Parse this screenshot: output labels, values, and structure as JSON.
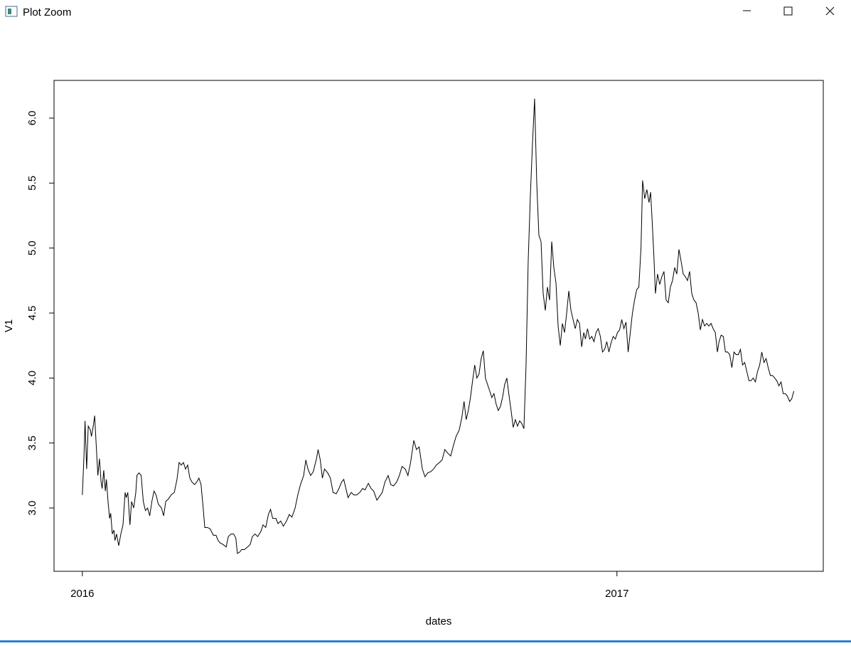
{
  "window": {
    "title": "Plot Zoom"
  },
  "chart_data": {
    "type": "line",
    "x_label": "dates",
    "y_label": "V1",
    "x": [
      2016.0,
      2016.003,
      2016.005,
      2016.008,
      2016.011,
      2016.015,
      2016.017,
      2016.02,
      2016.023,
      2016.027,
      2016.029,
      2016.032,
      2016.035,
      2016.037,
      2016.04,
      2016.043,
      2016.045,
      2016.048,
      2016.051,
      2016.053,
      2016.056,
      2016.059,
      2016.061,
      2016.064,
      2016.068,
      2016.072,
      2016.076,
      2016.08,
      2016.082,
      2016.085,
      2016.089,
      2016.092,
      2016.096,
      2016.1,
      2016.102,
      2016.106,
      2016.11,
      2016.114,
      2016.118,
      2016.122,
      2016.126,
      2016.13,
      2016.134,
      2016.138,
      2016.142,
      2016.148,
      2016.152,
      2016.156,
      2016.161,
      2016.166,
      2016.172,
      2016.177,
      2016.181,
      2016.185,
      2016.189,
      2016.193,
      2016.197,
      2016.201,
      2016.205,
      2016.21,
      2016.214,
      2016.218,
      2016.222,
      2016.226,
      2016.229,
      2016.234,
      2016.239,
      2016.245,
      2016.25,
      2016.254,
      2016.258,
      2016.263,
      2016.269,
      2016.273,
      2016.278,
      2016.283,
      2016.287,
      2016.29,
      2016.294,
      2016.298,
      2016.303,
      2016.309,
      2016.314,
      2016.318,
      2016.323,
      2016.328,
      2016.334,
      2016.338,
      2016.343,
      2016.348,
      2016.352,
      2016.356,
      2016.362,
      2016.366,
      2016.371,
      2016.376,
      2016.382,
      2016.387,
      2016.392,
      2016.398,
      2016.403,
      2016.408,
      2016.414,
      2016.418,
      2016.422,
      2016.427,
      2016.432,
      2016.438,
      2016.441,
      2016.445,
      2016.449,
      2016.453,
      2016.459,
      2016.464,
      2016.469,
      2016.475,
      2016.48,
      2016.485,
      2016.489,
      2016.493,
      2016.497,
      2016.503,
      2016.508,
      2016.513,
      2016.519,
      2016.524,
      2016.529,
      2016.535,
      2016.54,
      2016.545,
      2016.551,
      2016.556,
      2016.561,
      2016.566,
      2016.572,
      2016.577,
      2016.582,
      2016.588,
      2016.593,
      2016.598,
      2016.604,
      2016.609,
      2016.614,
      2016.62,
      2016.625,
      2016.63,
      2016.636,
      2016.641,
      2016.646,
      2016.652,
      2016.657,
      2016.662,
      2016.668,
      2016.673,
      2016.678,
      2016.684,
      2016.689,
      2016.694,
      2016.699,
      2016.705,
      2016.71,
      2016.714,
      2016.718,
      2016.722,
      2016.726,
      2016.73,
      2016.734,
      2016.738,
      2016.742,
      2016.746,
      2016.75,
      2016.754,
      2016.758,
      2016.762,
      2016.766,
      2016.77,
      2016.774,
      2016.778,
      2016.782,
      2016.786,
      2016.79,
      2016.794,
      2016.798,
      2016.802,
      2016.806,
      2016.81,
      2016.814,
      2016.818,
      2016.822,
      2016.826,
      2016.83,
      2016.834,
      2016.838,
      2016.842,
      2016.846,
      2016.85,
      2016.854,
      2016.858,
      2016.862,
      2016.866,
      2016.87,
      2016.874,
      2016.878,
      2016.882,
      2016.886,
      2016.89,
      2016.894,
      2016.898,
      2016.902,
      2016.906,
      2016.91,
      2016.914,
      2016.918,
      2016.922,
      2016.926,
      2016.93,
      2016.934,
      2016.938,
      2016.941,
      2016.945,
      2016.949,
      2016.953,
      2016.957,
      2016.961,
      2016.965,
      2016.969,
      2016.973,
      2016.977,
      2016.981,
      2016.985,
      2016.989,
      2016.993,
      2016.997,
      2017.001,
      2017.005,
      2017.009,
      2017.013,
      2017.017,
      2017.021,
      2017.025,
      2017.029,
      2017.033,
      2017.037,
      2017.041,
      2017.045,
      2017.048,
      2017.052,
      2017.056,
      2017.06,
      2017.063,
      2017.066,
      2017.069,
      2017.072,
      2017.076,
      2017.08,
      2017.084,
      2017.088,
      2017.092,
      2017.096,
      2017.1,
      2017.104,
      2017.108,
      2017.112,
      2017.116,
      2017.12,
      2017.124,
      2017.128,
      2017.132,
      2017.136,
      2017.14,
      2017.144,
      2017.148,
      2017.152,
      2017.156,
      2017.16,
      2017.164,
      2017.168,
      2017.172,
      2017.176,
      2017.18,
      2017.184,
      2017.188,
      2017.191,
      2017.195,
      2017.199,
      2017.203,
      2017.207,
      2017.211,
      2017.215,
      2017.219,
      2017.223,
      2017.227,
      2017.231,
      2017.235,
      2017.239,
      2017.243,
      2017.247,
      2017.251,
      2017.255,
      2017.259,
      2017.263,
      2017.267,
      2017.271,
      2017.275,
      2017.279,
      2017.283,
      2017.287,
      2017.291,
      2017.295,
      2017.299,
      2017.303,
      2017.307,
      2017.311,
      2017.315,
      2017.319,
      2017.323,
      2017.327,
      2017.331
    ],
    "series": [
      {
        "color": "#000000",
        "values": [
          3.1,
          3.4,
          3.67,
          3.3,
          3.63,
          3.6,
          3.55,
          3.62,
          3.71,
          3.4,
          3.25,
          3.38,
          3.2,
          3.15,
          3.29,
          3.13,
          3.22,
          3.05,
          2.92,
          2.96,
          2.8,
          2.83,
          2.75,
          2.8,
          2.71,
          2.8,
          2.87,
          3.12,
          3.08,
          3.12,
          2.87,
          3.05,
          3.0,
          3.12,
          3.25,
          3.27,
          3.25,
          3.05,
          2.98,
          3.0,
          2.94,
          3.05,
          3.13,
          3.1,
          3.03,
          3.0,
          2.94,
          3.05,
          3.07,
          3.1,
          3.12,
          3.22,
          3.35,
          3.33,
          3.35,
          3.3,
          3.33,
          3.23,
          3.2,
          3.18,
          3.2,
          3.23,
          3.18,
          3.0,
          2.85,
          2.85,
          2.84,
          2.79,
          2.79,
          2.75,
          2.73,
          2.72,
          2.7,
          2.78,
          2.8,
          2.8,
          2.77,
          2.65,
          2.66,
          2.68,
          2.68,
          2.7,
          2.72,
          2.78,
          2.8,
          2.78,
          2.82,
          2.87,
          2.85,
          2.95,
          2.99,
          2.92,
          2.92,
          2.88,
          2.9,
          2.86,
          2.9,
          2.95,
          2.93,
          3.0,
          3.1,
          3.18,
          3.25,
          3.37,
          3.3,
          3.25,
          3.28,
          3.38,
          3.45,
          3.37,
          3.23,
          3.3,
          3.27,
          3.23,
          3.12,
          3.11,
          3.15,
          3.2,
          3.22,
          3.15,
          3.08,
          3.12,
          3.1,
          3.1,
          3.12,
          3.15,
          3.14,
          3.19,
          3.15,
          3.13,
          3.06,
          3.09,
          3.12,
          3.2,
          3.25,
          3.18,
          3.17,
          3.2,
          3.25,
          3.32,
          3.3,
          3.25,
          3.35,
          3.52,
          3.45,
          3.47,
          3.3,
          3.24,
          3.27,
          3.28,
          3.3,
          3.33,
          3.35,
          3.37,
          3.45,
          3.42,
          3.4,
          3.48,
          3.55,
          3.6,
          3.7,
          3.82,
          3.68,
          3.75,
          3.85,
          3.98,
          4.1,
          4.0,
          4.03,
          4.15,
          4.21,
          4.0,
          3.95,
          3.9,
          3.85,
          3.88,
          3.8,
          3.75,
          3.78,
          3.85,
          3.95,
          4.0,
          3.87,
          3.75,
          3.62,
          3.68,
          3.63,
          3.67,
          3.65,
          3.61,
          4.1,
          4.9,
          5.4,
          5.8,
          6.15,
          5.5,
          5.1,
          5.05,
          4.65,
          4.52,
          4.7,
          4.6,
          5.05,
          4.85,
          4.73,
          4.4,
          4.25,
          4.42,
          4.35,
          4.5,
          4.67,
          4.52,
          4.45,
          4.38,
          4.45,
          4.42,
          4.24,
          4.35,
          4.3,
          4.38,
          4.3,
          4.32,
          4.28,
          4.35,
          4.38,
          4.32,
          4.2,
          4.22,
          4.28,
          4.2,
          4.27,
          4.32,
          4.3,
          4.35,
          4.37,
          4.45,
          4.38,
          4.43,
          4.2,
          4.35,
          4.5,
          4.6,
          4.68,
          4.7,
          5.0,
          5.52,
          5.38,
          5.45,
          5.35,
          5.43,
          5.2,
          4.95,
          4.65,
          4.8,
          4.72,
          4.78,
          4.82,
          4.6,
          4.58,
          4.7,
          4.75,
          4.85,
          4.8,
          4.99,
          4.9,
          4.8,
          4.78,
          4.75,
          4.82,
          4.65,
          4.6,
          4.58,
          4.5,
          4.37,
          4.45,
          4.4,
          4.42,
          4.4,
          4.42,
          4.38,
          4.35,
          4.2,
          4.28,
          4.33,
          4.32,
          4.2,
          4.2,
          4.18,
          4.08,
          4.2,
          4.18,
          4.18,
          4.22,
          4.1,
          4.12,
          4.05,
          3.98,
          3.98,
          4.0,
          3.97,
          4.05,
          4.1,
          4.2,
          4.12,
          4.15,
          4.08,
          4.02,
          4.02,
          4.0,
          3.98,
          3.94,
          3.97,
          3.88,
          3.88,
          3.86,
          3.82,
          3.84,
          3.9
        ]
      }
    ],
    "xlim": [
      2015.947,
      2017.386
    ],
    "xticks": [
      2016,
      2017
    ],
    "ylim": [
      2.513,
      6.29
    ],
    "yticks": [
      {
        "value": 3,
        "label": "3.0"
      },
      {
        "value": 3.5,
        "label": "3.5"
      },
      {
        "value": 4,
        "label": "4.0"
      },
      {
        "value": 4.5,
        "label": "4.5"
      },
      {
        "value": 5,
        "label": "5.0"
      },
      {
        "value": 5.5,
        "label": "5.5"
      },
      {
        "value": 6,
        "label": "6.0"
      }
    ]
  }
}
